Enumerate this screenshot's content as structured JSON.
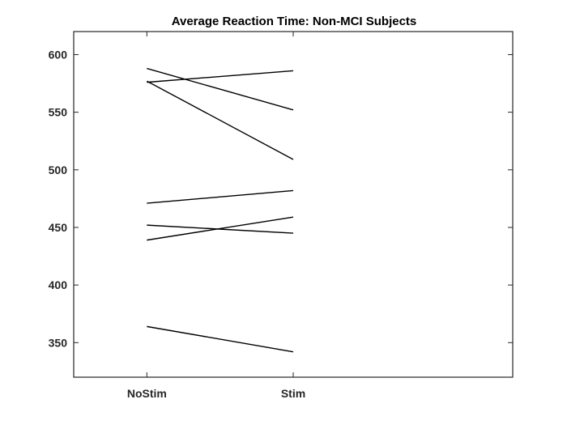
{
  "chart_data": {
    "type": "line",
    "title": "Average Reaction Time: Non-MCI Subjects",
    "xlabel": "",
    "ylabel": "",
    "categories": [
      "NoStim",
      "Stim"
    ],
    "xlim": [
      0.5,
      3.5
    ],
    "ylim": [
      320,
      620
    ],
    "yticks": [
      350,
      400,
      450,
      500,
      550,
      600
    ],
    "grid": false,
    "legend": "none",
    "line_color": "#000000",
    "axis_color": "#262626",
    "series": [
      {
        "values": [
          588,
          552
        ]
      },
      {
        "values": [
          576,
          586
        ]
      },
      {
        "values": [
          577,
          509
        ]
      },
      {
        "values": [
          471,
          482
        ]
      },
      {
        "values": [
          452,
          445
        ]
      },
      {
        "values": [
          439,
          459
        ]
      },
      {
        "values": [
          364,
          342
        ]
      }
    ]
  }
}
